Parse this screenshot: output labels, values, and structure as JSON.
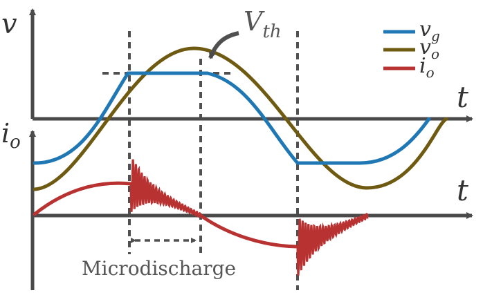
{
  "axes": {
    "v_axis_label": "v",
    "i_axis_label": "i",
    "i_axis_sub": "o",
    "time_label_top": "t",
    "time_label_bottom": "t"
  },
  "annotations": {
    "threshold_main": "V",
    "threshold_sub": "th",
    "microdischarge": "Microdischarge"
  },
  "legend": [
    {
      "main": "v",
      "sub": "g",
      "color": "#1f77b4"
    },
    {
      "main": "v",
      "sub": "o",
      "color": "#6f5a12"
    },
    {
      "main": "i",
      "sub": "o",
      "color": "#b83232"
    }
  ],
  "colors": {
    "axis": "#4a4a4a",
    "guide": "#505050",
    "vg": "#1f77b4",
    "vo": "#6f5a12",
    "io": "#b83232",
    "text": "#333333",
    "annotation_text": "#555555"
  }
}
